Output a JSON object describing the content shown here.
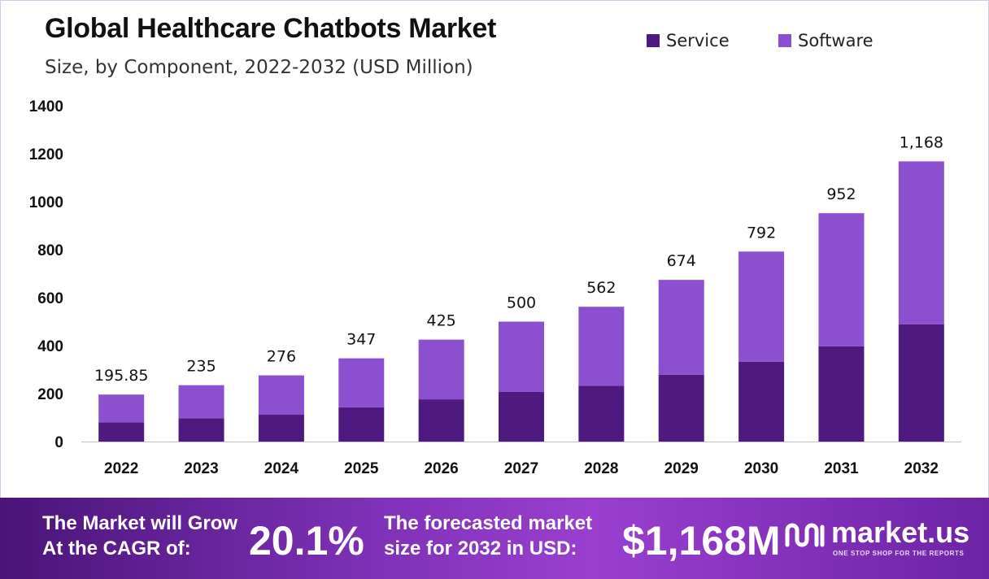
{
  "chart_data": {
    "type": "bar",
    "stacked": true,
    "title": "Global Healthcare Chatbots Market",
    "subtitle": "Size, by Component, 2022-2032 (USD Million)",
    "categories": [
      "2022",
      "2023",
      "2024",
      "2025",
      "2026",
      "2027",
      "2028",
      "2029",
      "2030",
      "2031",
      "2032"
    ],
    "series": [
      {
        "name": "Service",
        "color": "#4e1a80",
        "values": [
          80,
          97,
          113,
          143,
          176,
          207,
          233,
          279,
          333,
          397,
          489
        ]
      },
      {
        "name": "Software",
        "color": "#8c4fd0",
        "values": [
          115.85,
          138,
          163,
          204,
          249,
          293,
          329,
          395,
          459,
          555,
          679
        ]
      }
    ],
    "totals": [
      195.85,
      235,
      276,
      347,
      425,
      500,
      562,
      674,
      792,
      952,
      1168
    ],
    "total_labels": [
      "195.85",
      "235",
      "276",
      "347",
      "425",
      "500",
      "562",
      "674",
      "792",
      "952",
      "1,168"
    ],
    "yticks": [
      "0",
      "200",
      "400",
      "600",
      "800",
      "1000",
      "1200",
      "1400"
    ],
    "ylim": [
      0,
      1400
    ],
    "grid": false,
    "legend_position": "top-right"
  },
  "banner": {
    "cagr_label_line1": "The Market will Grow",
    "cagr_label_line2": "At the CAGR of:",
    "cagr_value": "20.1%",
    "forecast_label_line1": "The forecasted market",
    "forecast_label_line2": "size for 2032 in USD:",
    "forecast_value": "$1,168M",
    "brand_name": "market.us",
    "brand_tagline": "ONE STOP SHOP FOR THE REPORTS"
  }
}
